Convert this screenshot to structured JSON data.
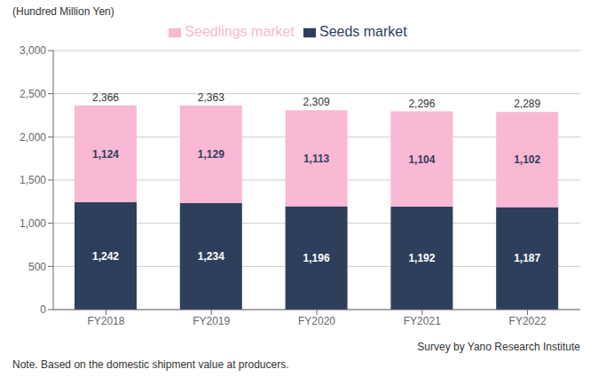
{
  "chart_data": {
    "type": "bar",
    "stacked": true,
    "categories": [
      "FY2018",
      "FY2019",
      "FY2020",
      "FY2021",
      "FY2022"
    ],
    "series": [
      {
        "name": "Seeds market",
        "color": "#2e3f5c",
        "values": [
          1242,
          1234,
          1196,
          1192,
          1187
        ],
        "value_labels": [
          "1,242",
          "1,234",
          "1,196",
          "1,192",
          "1,187"
        ]
      },
      {
        "name": "Seedlings market",
        "color": "#f9b8d4",
        "values": [
          1124,
          1129,
          1113,
          1104,
          1102
        ],
        "value_labels": [
          "1,124",
          "1,129",
          "1,113",
          "1,104",
          "1,102"
        ]
      }
    ],
    "totals": [
      2366,
      2363,
      2309,
      2296,
      2289
    ],
    "total_labels": [
      "2,366",
      "2,363",
      "2,309",
      "2,296",
      "2,289"
    ],
    "ylabel": "(Hundred Million Yen)",
    "ylim": [
      0,
      3000
    ],
    "yticks": [
      0,
      500,
      {
        "value": 1000,
        "label": "1,000"
      },
      {
        "value": 1500,
        "label": "1,500"
      },
      {
        "value": 2000,
        "label": "2,000"
      },
      {
        "value": 2500,
        "label": "2,500"
      },
      {
        "value": 3000,
        "label": "3,000"
      }
    ],
    "grid": true,
    "legend": "top",
    "data_labels": true,
    "note": "Note. Based on the domestic shipment value at producers.",
    "source": "Survey by Yano Research Institute"
  }
}
